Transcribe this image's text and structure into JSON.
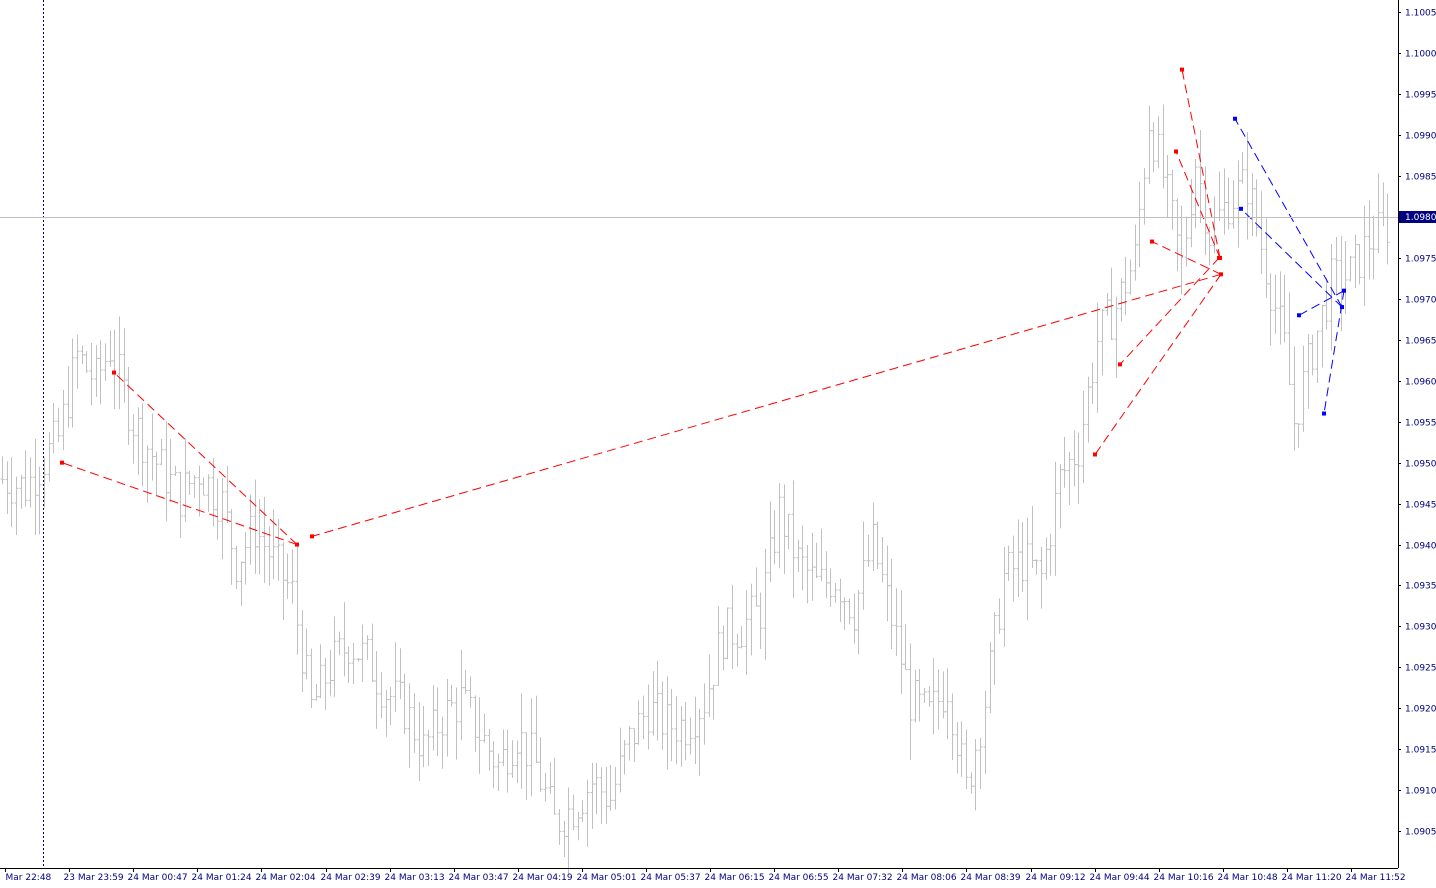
{
  "chart_data": {
    "type": "line",
    "title": "",
    "xlabel": "",
    "ylabel": "",
    "ylim": [
      1.09005,
      1.10065
    ],
    "y_tick_labels": [
      "1.1005",
      "1.1000",
      "1.0995",
      "1.0990",
      "1.0985",
      "1.0980",
      "1.0975",
      "1.0970",
      "1.0965",
      "1.0960",
      "1.0955",
      "1.0950",
      "1.0945",
      "1.0940",
      "1.0935",
      "1.0930",
      "1.0925",
      "1.0920",
      "1.0915",
      "1.0910",
      "1.0905"
    ],
    "x_tick_labels": [
      "Mar 22:48",
      "23 Mar 23:59",
      "24 Mar 00:47",
      "24 Mar 01:24",
      "24 Mar 02:04",
      "24 Mar 02:39",
      "24 Mar 03:13",
      "24 Mar 03:47",
      "24 Mar 04:19",
      "24 Mar 05:01",
      "24 Mar 05:37",
      "24 Mar 06:15",
      "24 Mar 06:55",
      "24 Mar 07:32",
      "24 Mar 08:06",
      "24 Mar 08:39",
      "24 Mar 09:12",
      "24 Mar 09:44",
      "24 Mar 10:16",
      "24 Mar 10:48",
      "24 Mar 11:20",
      "24 Mar 11:52"
    ],
    "current_price": "1.0980",
    "bar_color": "#c0c0c0",
    "price_keyframes": [
      [
        0,
        1.0948
      ],
      [
        5,
        1.0947
      ],
      [
        12,
        1.0953
      ],
      [
        16,
        1.0963
      ],
      [
        20,
        1.096
      ],
      [
        23,
        1.0964
      ],
      [
        28,
        1.0955
      ],
      [
        33,
        1.095
      ],
      [
        38,
        1.0946
      ],
      [
        42,
        1.0949
      ],
      [
        47,
        1.0945
      ],
      [
        50,
        1.0938
      ],
      [
        54,
        1.0942
      ],
      [
        58,
        1.0938
      ],
      [
        62,
        1.0934
      ],
      [
        66,
        1.092
      ],
      [
        70,
        1.0925
      ],
      [
        74,
        1.0928
      ],
      [
        78,
        1.0926
      ],
      [
        82,
        1.0922
      ],
      [
        86,
        1.092
      ],
      [
        90,
        1.0915
      ],
      [
        94,
        1.0919
      ],
      [
        98,
        1.0921
      ],
      [
        102,
        1.0917
      ],
      [
        106,
        1.0913
      ],
      [
        110,
        1.0917
      ],
      [
        114,
        1.0913
      ],
      [
        118,
        1.0906
      ],
      [
        122,
        1.0908
      ],
      [
        126,
        1.0911
      ],
      [
        130,
        1.0909
      ],
      [
        134,
        1.0916
      ],
      [
        138,
        1.092
      ],
      [
        142,
        1.0918
      ],
      [
        146,
        1.0918
      ],
      [
        150,
        1.0921
      ],
      [
        154,
        1.0929
      ],
      [
        158,
        1.093
      ],
      [
        162,
        1.0932
      ],
      [
        166,
        1.0944
      ],
      [
        170,
        1.0938
      ],
      [
        174,
        1.0935
      ],
      [
        178,
        1.0936
      ],
      [
        182,
        1.0932
      ],
      [
        186,
        1.094
      ],
      [
        190,
        1.0931
      ],
      [
        194,
        1.0921
      ],
      [
        198,
        1.0919
      ],
      [
        202,
        1.0923
      ],
      [
        206,
        1.091
      ],
      [
        210,
        1.0921
      ],
      [
        214,
        1.0936
      ],
      [
        218,
        1.0938
      ],
      [
        222,
        1.0936
      ],
      [
        226,
        1.0948
      ],
      [
        230,
        1.0952
      ],
      [
        234,
        1.0965
      ],
      [
        238,
        1.0969
      ],
      [
        242,
        1.0975
      ],
      [
        245,
        1.0992
      ],
      [
        248,
        1.0985
      ],
      [
        252,
        1.0974
      ],
      [
        255,
        1.0987
      ],
      [
        258,
        1.0978
      ],
      [
        262,
        1.0982
      ],
      [
        266,
        1.0984
      ],
      [
        270,
        1.0974
      ],
      [
        274,
        1.0964
      ],
      [
        276,
        1.0955
      ],
      [
        280,
        1.0964
      ],
      [
        284,
        1.0972
      ],
      [
        288,
        1.0973
      ],
      [
        292,
        1.0977
      ],
      [
        296,
        1.0979
      ]
    ],
    "series": [
      {
        "name": "",
        "color": "#ff0000",
        "points": [
          [
            0.03,
            1.095
          ],
          [
            0.67,
            1.0961
          ],
          [
            2.73,
            1.094
          ],
          [
            0.29,
            1.0941
          ],
          [
            1.18,
            1.0951
          ],
          [
            1.96,
            1.0975
          ],
          [
            1.29,
            1.0962
          ],
          [
            2.14,
            1.0973
          ],
          [
            1.79,
            1.0977
          ],
          [
            2.04,
            1.0975
          ],
          [
            1.63,
            1.0988
          ],
          [
            1.16,
            1.0998
          ]
        ],
        "segments": [
          {
            "from": [
              2.73,
              1.094
            ],
            "to": [
              0.03,
              1.095
            ]
          },
          {
            "from": [
              2.73,
              1.094
            ],
            "to": [
              0.67,
              1.0961
            ]
          },
          {
            "from": [
              2.14,
              1.0973
            ],
            "to": [
              0.29,
              1.0941
            ]
          },
          {
            "from": [
              2.14,
              1.0973
            ],
            "to": [
              1.18,
              1.0951
            ]
          },
          {
            "from": [
              2.04,
              1.0975
            ],
            "to": [
              1.29,
              1.0962
            ]
          },
          {
            "from": [
              2.14,
              1.0973
            ],
            "to": [
              1.79,
              1.0977
            ]
          },
          {
            "from": [
              1.96,
              1.0975
            ],
            "to": [
              1.63,
              1.0988
            ]
          },
          {
            "from": [
              1.96,
              1.0975
            ],
            "to": [
              1.16,
              1.0998
            ]
          }
        ]
      },
      {
        "name": "",
        "color": "#0000ff",
        "points": [
          [
            0.54,
            1.0992
          ],
          [
            0.9,
            1.0981
          ],
          [
            1.68,
            1.0968
          ],
          [
            1.61,
            1.0969
          ],
          [
            1.76,
            1.0971
          ],
          [
            1.58,
            1.0956
          ]
        ],
        "segments": [
          {
            "from": [
              1.61,
              1.0969
            ],
            "to": [
              0.54,
              1.0992
            ]
          },
          {
            "from": [
              1.61,
              1.0969
            ],
            "to": [
              0.9,
              1.0981
            ]
          },
          {
            "from": [
              1.76,
              1.0971
            ],
            "to": [
              1.68,
              1.0968
            ]
          },
          {
            "from": [
              1.76,
              1.0971
            ],
            "to": [
              1.58,
              1.0956
            ]
          }
        ]
      }
    ],
    "grid": false
  }
}
